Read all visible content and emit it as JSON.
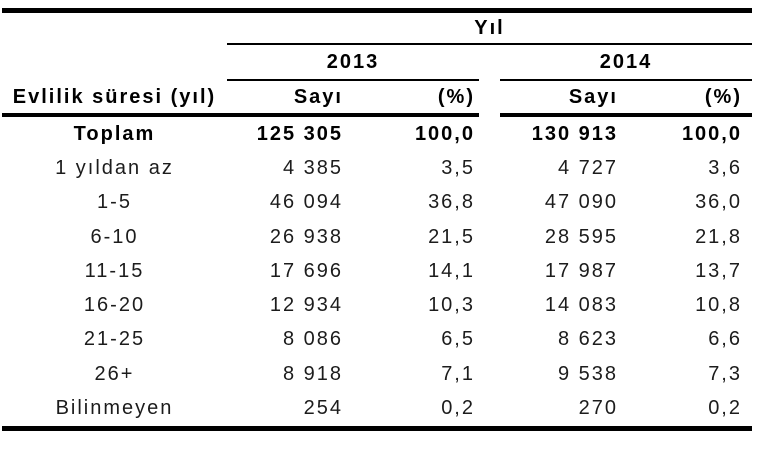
{
  "table": {
    "top_header": "Yıl",
    "dimension_header": "Evlilik süresi (yıl)",
    "years": [
      "2013",
      "2014"
    ],
    "measure_headers": [
      "Sayı",
      "(%)"
    ],
    "rows": [
      {
        "label": "Toplam",
        "bold": true,
        "values": [
          "125 305",
          "100,0",
          "130 913",
          "100,0"
        ]
      },
      {
        "label": "1 yıldan az",
        "bold": false,
        "values": [
          "4 385",
          "3,5",
          "4 727",
          "3,6"
        ]
      },
      {
        "label": "1-5",
        "bold": false,
        "values": [
          "46 094",
          "36,8",
          "47 090",
          "36,0"
        ]
      },
      {
        "label": "6-10",
        "bold": false,
        "values": [
          "26 938",
          "21,5",
          "28 595",
          "21,8"
        ]
      },
      {
        "label": "11-15",
        "bold": false,
        "values": [
          "17 696",
          "14,1",
          "17 987",
          "13,7"
        ]
      },
      {
        "label": "16-20",
        "bold": false,
        "values": [
          "12 934",
          "10,3",
          "14 083",
          "10,8"
        ]
      },
      {
        "label": "21-25",
        "bold": false,
        "values": [
          "8 086",
          "6,5",
          "8 623",
          "6,6"
        ]
      },
      {
        "label": "26+",
        "bold": false,
        "values": [
          "8 918",
          "7,1",
          "9 538",
          "7,3"
        ]
      },
      {
        "label": "Bilinmeyen",
        "bold": false,
        "values": [
          "254",
          "0,2",
          "270",
          "0,2"
        ]
      }
    ]
  },
  "colors": {
    "text": "#1c1c1c",
    "bold_text": "#000000",
    "line": "#000000",
    "background": "#ffffff"
  },
  "chart_data": {
    "type": "table",
    "title": "Yıl",
    "row_dimension": "Evlilik süresi (yıl)",
    "column_groups": [
      "2013",
      "2014"
    ],
    "columns_per_group": [
      "Sayı",
      "(%)"
    ],
    "rows": [
      {
        "label": "Toplam",
        "sayi_2013": 125305,
        "pct_2013": 100.0,
        "sayi_2014": 130913,
        "pct_2014": 100.0
      },
      {
        "label": "1 yıldan az",
        "sayi_2013": 4385,
        "pct_2013": 3.5,
        "sayi_2014": 4727,
        "pct_2014": 3.6
      },
      {
        "label": "1-5",
        "sayi_2013": 46094,
        "pct_2013": 36.8,
        "sayi_2014": 47090,
        "pct_2014": 36.0
      },
      {
        "label": "6-10",
        "sayi_2013": 26938,
        "pct_2013": 21.5,
        "sayi_2014": 28595,
        "pct_2014": 21.8
      },
      {
        "label": "11-15",
        "sayi_2013": 17696,
        "pct_2013": 14.1,
        "sayi_2014": 17987,
        "pct_2014": 13.7
      },
      {
        "label": "16-20",
        "sayi_2013": 12934,
        "pct_2013": 10.3,
        "sayi_2014": 14083,
        "pct_2014": 10.8
      },
      {
        "label": "21-25",
        "sayi_2013": 8086,
        "pct_2013": 6.5,
        "sayi_2014": 8623,
        "pct_2014": 6.6
      },
      {
        "label": "26+",
        "sayi_2013": 8918,
        "pct_2013": 7.1,
        "sayi_2014": 9538,
        "pct_2014": 7.3
      },
      {
        "label": "Bilinmeyen",
        "sayi_2013": 254,
        "pct_2013": 0.2,
        "sayi_2014": 270,
        "pct_2014": 0.2
      }
    ],
    "notes": "Thousands separated by space, decimal comma (Turkish locale). Toplam row bold."
  }
}
